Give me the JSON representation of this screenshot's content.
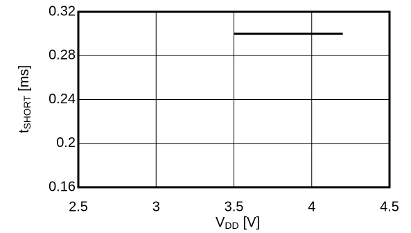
{
  "chart_data": {
    "type": "line",
    "x": [
      3.5,
      4.2
    ],
    "series": [
      {
        "color": "#000000",
        "values": [
          0.3,
          0.3
        ]
      }
    ],
    "xlim": [
      2.5,
      4.5
    ],
    "xticks": [
      2.5,
      3,
      3.5,
      4,
      4.5
    ],
    "ylim": [
      0.16,
      0.32
    ],
    "yticks": [
      0.16,
      0.2,
      0.24,
      0.28,
      0.32
    ],
    "grid": true,
    "xlabel": {
      "main": "V",
      "sub": "DD",
      "unit": "[V]"
    },
    "ylabel": {
      "main": "t",
      "sub": "SHORT",
      "unit": "[ms]"
    }
  }
}
